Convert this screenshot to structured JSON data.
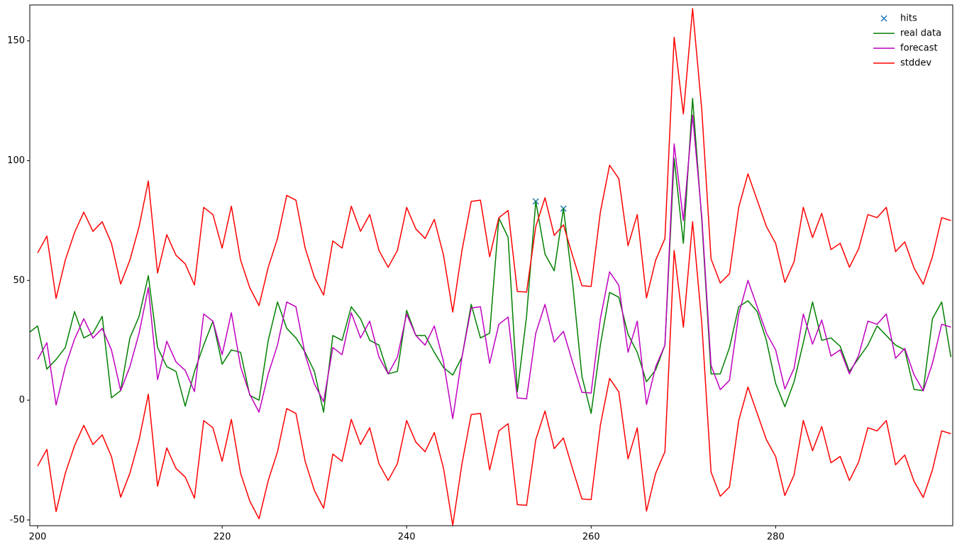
{
  "chart_data": {
    "type": "line",
    "xlim": [
      199.15,
      299.2
    ],
    "ylim": [
      -52.4,
      165
    ],
    "xticks": [
      200,
      220,
      240,
      260,
      280
    ],
    "yticks": [
      -50,
      0,
      50,
      100,
      150
    ],
    "legend": "upper right",
    "x": [
      199,
      200,
      201,
      202,
      203,
      204,
      205,
      206,
      207,
      208,
      209,
      210,
      211,
      212,
      213,
      214,
      215,
      216,
      217,
      218,
      219,
      220,
      221,
      222,
      223,
      224,
      225,
      226,
      227,
      228,
      229,
      230,
      231,
      232,
      233,
      234,
      235,
      236,
      237,
      238,
      239,
      240,
      241,
      242,
      243,
      244,
      245,
      246,
      247,
      248,
      249,
      250,
      251,
      252,
      253,
      254,
      255,
      256,
      257,
      258,
      259,
      260,
      261,
      262,
      263,
      264,
      265,
      266,
      267,
      268,
      269,
      270,
      271,
      272,
      273,
      274,
      275,
      276,
      277,
      278,
      279,
      280,
      281,
      282,
      283,
      284,
      285,
      286,
      287,
      288,
      289,
      290,
      291,
      292,
      293,
      294,
      295,
      296,
      297,
      298,
      299
    ],
    "series": [
      {
        "name": "hits",
        "color": "#1f77b4",
        "marker": "x",
        "x": [
          254,
          257
        ],
        "values": [
          83,
          80
        ]
      },
      {
        "name": "real data",
        "color": "#008000",
        "values": [
          28,
          31,
          13,
          17,
          22,
          37,
          26,
          28,
          35,
          1,
          4,
          26,
          35,
          52,
          22,
          14,
          12,
          -2.5,
          12,
          23,
          33,
          15,
          21,
          20,
          2,
          0,
          25,
          41,
          30,
          26,
          20,
          12,
          -5,
          27,
          25,
          39,
          34,
          25,
          23,
          11,
          12,
          37.5,
          27,
          27,
          20,
          13.6,
          10.5,
          18,
          40,
          26,
          28,
          76,
          68,
          3.5,
          35,
          83,
          61,
          54,
          80,
          48.6,
          10,
          -5.5,
          23,
          45,
          43,
          27.5,
          20,
          7.7,
          12.7,
          23,
          101,
          65.5,
          126,
          75,
          11,
          11,
          22,
          39,
          41.5,
          37,
          25,
          7,
          -2.7,
          7.7,
          24,
          41,
          25,
          26,
          22.5,
          12,
          17.5,
          23,
          31,
          27,
          23,
          21,
          4.5,
          4,
          34,
          41,
          18
        ]
      },
      {
        "name": "forecast",
        "color": "#bf00bf",
        "values": [
          null,
          17,
          24,
          -2,
          14,
          25.5,
          34,
          26,
          30,
          21,
          4,
          14,
          28,
          47,
          8.6,
          24.6,
          16,
          12.4,
          3.6,
          36,
          33,
          19,
          36.5,
          14,
          2.4,
          -5,
          11,
          23,
          41,
          39,
          19,
          6.8,
          -0.6,
          22,
          19,
          36.5,
          26,
          33,
          18,
          11,
          18,
          36,
          27,
          23,
          31,
          16,
          -7.7,
          18,
          38.5,
          39,
          15.4,
          31.7,
          34.7,
          0.9,
          0.6,
          28,
          40,
          24.3,
          28.7,
          15.7,
          3.3,
          3,
          34,
          53.6,
          48,
          20,
          33,
          -1.8,
          14,
          23,
          107,
          75,
          119,
          76.5,
          14.5,
          4.4,
          8.3,
          36,
          50,
          39,
          28,
          21,
          4.7,
          13.3,
          36,
          23.4,
          33.5,
          18.4,
          21,
          11,
          18.7,
          33,
          31.7,
          36,
          17.5,
          21.6,
          10.7,
          3.9,
          15.4,
          31.7,
          30.5
        ]
      },
      {
        "name": "stddev",
        "color": "#ff0000",
        "values": [
          null,
          61.5,
          68.5,
          42.5,
          58.5,
          70,
          78.5,
          70.5,
          74.5,
          65.5,
          48.5,
          58.5,
          72.5,
          91.5,
          53.1,
          69.1,
          60.5,
          56.9,
          48.1,
          80.5,
          77.5,
          63.5,
          81,
          58.5,
          46.9,
          39.5,
          55.5,
          67.5,
          85.5,
          83.5,
          63.5,
          51.3,
          43.9,
          66.5,
          63.5,
          81,
          70.5,
          77.5,
          62.5,
          55.5,
          62.5,
          80.5,
          71.5,
          67.5,
          75.5,
          60.5,
          36.8,
          62.5,
          83,
          83.5,
          59.9,
          76.2,
          79.2,
          45.4,
          45.1,
          72.5,
          84.5,
          68.8,
          73.2,
          60.2,
          47.8,
          47.5,
          78.5,
          98.1,
          92.5,
          64.5,
          77.5,
          42.7,
          58.5,
          67.5,
          151.5,
          119.5,
          163.5,
          121,
          59,
          48.9,
          52.8,
          80.5,
          94.5,
          83.5,
          72.5,
          65.5,
          49.2,
          57.8,
          80.5,
          67.9,
          78,
          62.9,
          65.5,
          55.5,
          63.2,
          77.5,
          76.2,
          80.5,
          62,
          66.1,
          55.2,
          48.4,
          59.9,
          76.2,
          75
        ]
      },
      {
        "color": "#ff0000",
        "values": [
          null,
          -27.5,
          -20.5,
          -46.5,
          -30.5,
          -19,
          -10.5,
          -18.5,
          -14.5,
          -23.5,
          -40.5,
          -30.5,
          -16.5,
          2.5,
          -35.9,
          -19.9,
          -28.5,
          -32.1,
          -40.9,
          -8.5,
          -11.5,
          -25.5,
          -8,
          -30.5,
          -42.1,
          -49.5,
          -33.5,
          -21.5,
          -3.5,
          -5.5,
          -25.5,
          -37.7,
          -45.1,
          -22.5,
          -25.5,
          -8,
          -18.5,
          -11.5,
          -26.5,
          -33.5,
          -26.5,
          -8.5,
          -17.5,
          -21.5,
          -13.5,
          -28.5,
          -52.2,
          -26.5,
          -6,
          -5.5,
          -29.1,
          -12.8,
          -9.8,
          -43.6,
          -43.9,
          -16.5,
          -4.5,
          -20.2,
          -15.8,
          -28.8,
          -41.2,
          -41.5,
          -10.5,
          9.1,
          3.5,
          -24.5,
          -11.5,
          -46.3,
          -30.5,
          -21.5,
          62.5,
          30.5,
          74.5,
          32,
          -30,
          -40.1,
          -36.2,
          -8.5,
          5.5,
          -5.5,
          -16.5,
          -23.5,
          -39.8,
          -31.2,
          -8.5,
          -21.1,
          -11,
          -26.1,
          -23.5,
          -33.5,
          -25.8,
          -11.5,
          -12.8,
          -8.5,
          -27,
          -22.9,
          -33.8,
          -40.6,
          -29.1,
          -12.8,
          -14
        ]
      }
    ]
  }
}
